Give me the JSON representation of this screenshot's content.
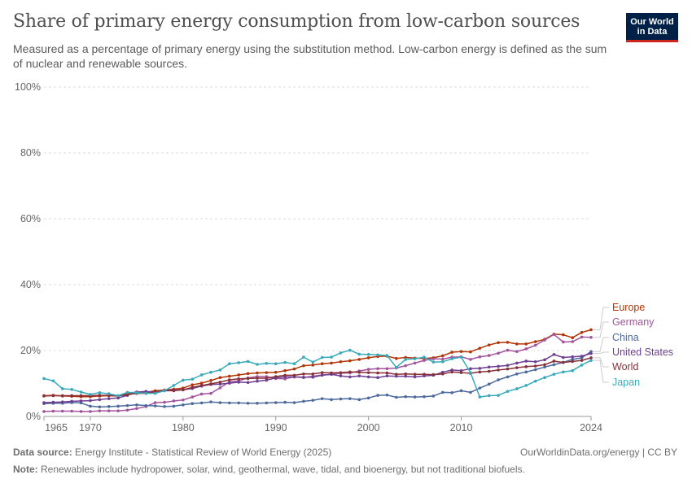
{
  "header": {
    "title": "Share of primary energy consumption from low-carbon sources",
    "subtitle": "Measured as a percentage of primary energy using the substitution method. Low-carbon energy is defined as the sum of nuclear and renewable sources.",
    "logo_line1": "Our World",
    "logo_line2": "in Data"
  },
  "footer": {
    "source_label": "Data source:",
    "source_text": "Energy Institute - Statistical Review of World Energy (2025)",
    "credit": "OurWorldinData.org/energy | CC BY",
    "note_label": "Note:",
    "note_text": "Renewables include hydropower, solar, wind, geothermal, wave, tidal, and bioenergy, but not traditional biofuels."
  },
  "chart_data": {
    "type": "line",
    "xlim": [
      1965,
      2024
    ],
    "ylim": [
      0,
      100
    ],
    "y_ticks": [
      0,
      20,
      40,
      60,
      80,
      100
    ],
    "y_tick_labels": [
      "0%",
      "20%",
      "40%",
      "60%",
      "80%",
      "100%"
    ],
    "x_ticks": [
      1965,
      1970,
      1980,
      1990,
      2000,
      2010,
      2024
    ],
    "x_tick_labels": [
      "1965",
      "1970",
      "1980",
      "1990",
      "2000",
      "2010",
      "2024"
    ],
    "grid": "horizontal dashed",
    "legend": "right, labels at line ends",
    "x": [
      1965,
      1966,
      1967,
      1968,
      1969,
      1970,
      1971,
      1972,
      1973,
      1974,
      1975,
      1976,
      1977,
      1978,
      1979,
      1980,
      1981,
      1982,
      1983,
      1984,
      1985,
      1986,
      1987,
      1988,
      1989,
      1990,
      1991,
      1992,
      1993,
      1994,
      1995,
      1996,
      1997,
      1998,
      1999,
      2000,
      2001,
      2002,
      2003,
      2004,
      2005,
      2006,
      2007,
      2008,
      2009,
      2010,
      2011,
      2012,
      2013,
      2014,
      2015,
      2016,
      2017,
      2018,
      2019,
      2020,
      2021,
      2022,
      2023,
      2024
    ],
    "series": [
      {
        "name": "Europe",
        "color": "#b13507",
        "values": [
          6.3,
          6.4,
          6.2,
          6.1,
          6.0,
          6.0,
          6.2,
          6.3,
          6.2,
          7.0,
          7.4,
          7.3,
          7.8,
          8.0,
          8.3,
          8.6,
          9.6,
          10.1,
          10.9,
          11.8,
          12.2,
          12.6,
          13.0,
          13.2,
          13.3,
          13.4,
          13.9,
          14.4,
          15.4,
          15.6,
          16.0,
          16.2,
          16.6,
          16.9,
          17.3,
          17.8,
          18.2,
          18.3,
          17.6,
          17.9,
          17.7,
          17.6,
          17.8,
          18.4,
          19.5,
          19.7,
          19.6,
          20.7,
          21.7,
          22.4,
          22.5,
          22.0,
          22.0,
          22.7,
          23.4,
          25.0,
          24.8,
          23.9,
          25.5,
          26.3
        ]
      },
      {
        "name": "Germany",
        "color": "#a2559c",
        "values": [
          1.5,
          1.6,
          1.6,
          1.6,
          1.5,
          1.5,
          1.7,
          1.7,
          1.7,
          1.9,
          2.4,
          3.0,
          4.2,
          4.3,
          4.7,
          5.0,
          5.9,
          6.8,
          7.0,
          8.7,
          10.5,
          10.8,
          11.7,
          12.1,
          12.1,
          11.5,
          11.4,
          12.0,
          11.8,
          12.2,
          12.6,
          12.8,
          13.1,
          13.2,
          13.8,
          14.3,
          14.5,
          14.5,
          14.7,
          15.4,
          16.2,
          17.0,
          17.5,
          17.4,
          18.0,
          18.1,
          17.3,
          18.1,
          18.5,
          19.2,
          20.1,
          19.7,
          20.5,
          21.6,
          23.2,
          24.9,
          22.6,
          22.7,
          24.1,
          24.0
        ]
      },
      {
        "name": "China",
        "color": "#4c6a9c",
        "values": [
          3.9,
          4.0,
          4.0,
          4.2,
          4.1,
          3.1,
          2.9,
          3.0,
          3.1,
          3.3,
          3.5,
          3.3,
          3.2,
          3.0,
          3.1,
          3.5,
          3.9,
          4.1,
          4.4,
          4.2,
          4.1,
          4.1,
          4.0,
          4.0,
          4.1,
          4.2,
          4.3,
          4.2,
          4.6,
          4.9,
          5.4,
          5.1,
          5.3,
          5.4,
          5.1,
          5.6,
          6.4,
          6.5,
          5.8,
          6.0,
          5.9,
          6.0,
          6.2,
          7.3,
          7.2,
          7.8,
          7.3,
          8.6,
          9.8,
          11.1,
          12.0,
          12.9,
          13.5,
          14.2,
          15.0,
          15.7,
          16.4,
          17.3,
          17.8,
          19.7
        ]
      },
      {
        "name": "United States",
        "color": "#6d3e91",
        "values": [
          4.2,
          4.3,
          4.4,
          4.6,
          4.7,
          4.8,
          5.1,
          5.4,
          5.6,
          6.4,
          7.4,
          7.6,
          7.3,
          7.9,
          8.0,
          8.1,
          8.5,
          9.2,
          9.7,
          9.8,
          10.1,
          10.4,
          10.3,
          10.7,
          11.0,
          11.7,
          12.0,
          12.0,
          11.9,
          11.9,
          12.5,
          12.8,
          12.3,
          12.0,
          12.3,
          12.0,
          11.8,
          12.3,
          12.2,
          12.2,
          12.0,
          12.3,
          12.5,
          13.4,
          14.1,
          13.9,
          14.5,
          14.6,
          15.0,
          15.2,
          15.5,
          16.2,
          16.8,
          16.6,
          17.2,
          18.8,
          17.9,
          18.1,
          18.3,
          19.1
        ]
      },
      {
        "name": "World",
        "color": "#883039",
        "values": [
          6.2,
          6.3,
          6.3,
          6.3,
          6.3,
          6.3,
          6.4,
          6.4,
          6.2,
          6.6,
          7.0,
          7.0,
          7.3,
          7.8,
          7.8,
          8.1,
          8.8,
          9.4,
          9.9,
          10.4,
          11.1,
          11.4,
          11.5,
          11.6,
          11.6,
          12.1,
          12.5,
          12.5,
          12.9,
          12.9,
          13.3,
          13.2,
          13.3,
          13.5,
          13.4,
          13.3,
          13.2,
          13.2,
          12.8,
          12.9,
          12.8,
          12.8,
          12.7,
          12.9,
          13.5,
          13.3,
          13.1,
          13.5,
          13.7,
          14.1,
          14.4,
          14.8,
          15.1,
          15.3,
          15.7,
          16.8,
          16.4,
          16.7,
          17.0,
          17.8
        ]
      },
      {
        "name": "Japan",
        "color": "#38aaba",
        "values": [
          11.5,
          10.8,
          8.4,
          8.2,
          7.4,
          6.7,
          7.2,
          6.9,
          6.3,
          7.3,
          7.2,
          7.0,
          7.0,
          7.8,
          9.4,
          11.0,
          11.3,
          12.6,
          13.4,
          14.1,
          16.0,
          16.3,
          16.7,
          15.8,
          16.1,
          16.0,
          16.4,
          16.0,
          18.0,
          16.5,
          17.9,
          18.0,
          19.3,
          20.1,
          18.9,
          18.8,
          18.7,
          18.5,
          14.9,
          17.3,
          17.5,
          18.0,
          16.5,
          16.6,
          17.5,
          18.0,
          13.3,
          5.9,
          6.3,
          6.4,
          7.6,
          8.4,
          9.4,
          10.7,
          11.8,
          12.8,
          13.5,
          13.9,
          15.6,
          17.0
        ]
      }
    ]
  }
}
